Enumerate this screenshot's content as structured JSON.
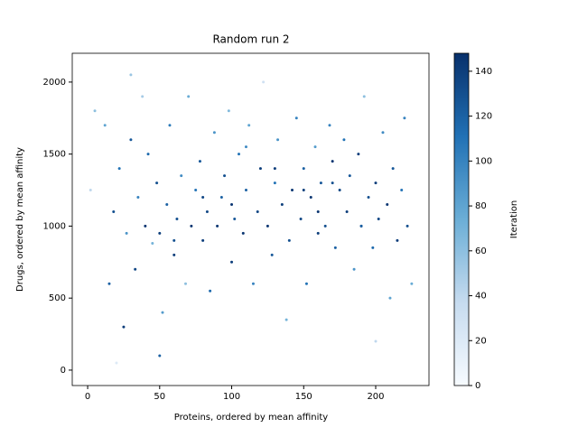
{
  "chart_data": {
    "type": "scatter",
    "title": "Random run 2",
    "x_label": "Proteins, ordered by mean affinity",
    "y_label": "Drugs, ordered by mean affinity",
    "colorbar_label": "Iteration",
    "colormap": "Blues",
    "x": [
      2,
      5,
      12,
      15,
      18,
      20,
      22,
      25,
      27,
      30,
      33,
      35,
      38,
      40,
      42,
      45,
      48,
      50,
      52,
      55,
      57,
      60,
      62,
      65,
      68,
      70,
      72,
      75,
      78,
      80,
      83,
      85,
      88,
      90,
      93,
      95,
      98,
      100,
      102,
      105,
      108,
      110,
      112,
      115,
      118,
      120,
      122,
      125,
      128,
      130,
      132,
      135,
      138,
      140,
      142,
      145,
      148,
      150,
      152,
      155,
      158,
      160,
      162,
      165,
      168,
      170,
      172,
      175,
      178,
      180,
      182,
      185,
      188,
      190,
      192,
      195,
      198,
      200,
      202,
      205,
      208,
      210,
      212,
      215,
      218,
      220,
      222,
      225,
      50,
      100,
      150,
      200,
      60,
      110,
      160,
      190,
      130,
      80,
      30,
      170
    ],
    "y": [
      1250,
      1800,
      1700,
      600,
      1100,
      50,
      1400,
      300,
      950,
      1600,
      700,
      1200,
      1900,
      1000,
      1500,
      880,
      1300,
      950,
      400,
      1150,
      1700,
      800,
      1050,
      1350,
      600,
      1900,
      1000,
      1250,
      1450,
      900,
      1100,
      550,
      1650,
      1000,
      1200,
      1350,
      1800,
      750,
      1050,
      1500,
      950,
      1250,
      1700,
      600,
      1100,
      1400,
      2000,
      1000,
      800,
      1300,
      1600,
      1150,
      350,
      900,
      1250,
      1750,
      1050,
      1400,
      600,
      1200,
      1550,
      950,
      1300,
      1000,
      1700,
      1450,
      850,
      1250,
      1600,
      1100,
      1350,
      700,
      1500,
      1000,
      1900,
      1200,
      850,
      1300,
      1050,
      1650,
      1150,
      500,
      1400,
      900,
      1250,
      1750,
      1000,
      600,
      100,
      1150,
      1250,
      200,
      900,
      1550,
      1100,
      1000,
      1400,
      1200,
      2050,
      1300
    ],
    "c": [
      40,
      60,
      80,
      120,
      130,
      20,
      110,
      140,
      90,
      125,
      135,
      100,
      50,
      145,
      115,
      70,
      130,
      140,
      85,
      120,
      105,
      140,
      130,
      95,
      60,
      75,
      145,
      110,
      125,
      140,
      135,
      115,
      90,
      145,
      120,
      130,
      65,
      140,
      125,
      110,
      145,
      120,
      80,
      100,
      135,
      140,
      30,
      145,
      125,
      110,
      90,
      140,
      70,
      130,
      145,
      100,
      135,
      120,
      110,
      145,
      85,
      140,
      125,
      130,
      100,
      145,
      120,
      135,
      110,
      140,
      125,
      90,
      140,
      145,
      60,
      130,
      115,
      140,
      135,
      95,
      145,
      80,
      125,
      140,
      110,
      100,
      130,
      75,
      120,
      145,
      140,
      40,
      130,
      95,
      145,
      120,
      140,
      135,
      55,
      130
    ],
    "xlim": [
      -10.7,
      237
    ],
    "xticks": [
      0,
      50,
      100,
      150,
      200
    ],
    "ylim": [
      -107,
      2200
    ],
    "yticks": [
      0,
      500,
      1000,
      1500,
      2000
    ],
    "clim": [
      0,
      148
    ],
    "cticks": [
      0,
      20,
      40,
      60,
      80,
      100,
      120,
      140
    ]
  }
}
